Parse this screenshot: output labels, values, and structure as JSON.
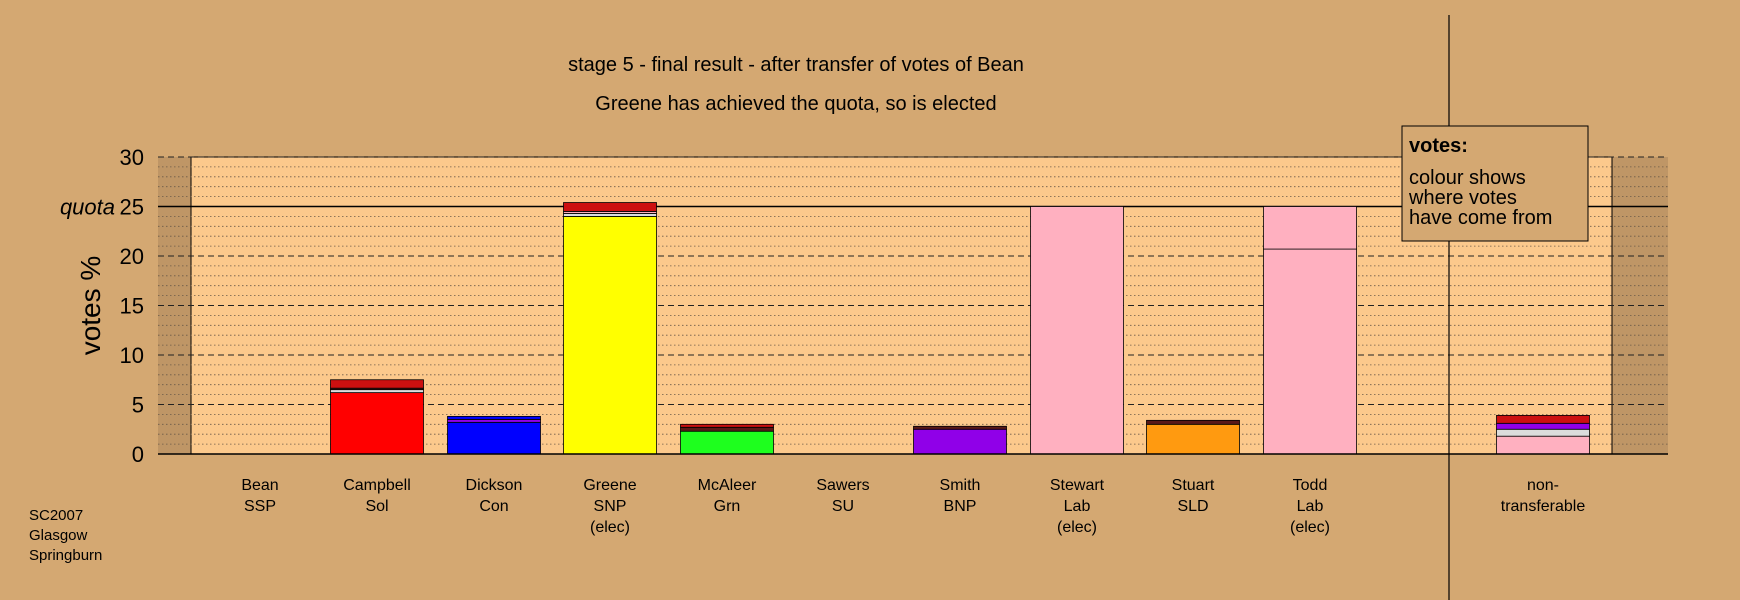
{
  "chart_data": {
    "type": "bar",
    "stacked": true,
    "title": "stage 5 - final result - after transfer of votes of Bean",
    "subtitle": "Greene has achieved the quota, so is elected",
    "ylabel": "votes %",
    "ylim": [
      0,
      30
    ],
    "yticks": [
      0,
      5,
      10,
      15,
      20,
      25,
      30
    ],
    "quota": 25,
    "quota_label": "quota",
    "grid": true,
    "colors": {
      "background": "#d4a872",
      "plot_area": "#fcc98c",
      "side_area": "#bf9666",
      "Sol": "#ff0000",
      "SSP": "#cc1010",
      "Con": "#0000ff",
      "SNP": "#ffff00",
      "Grn": "#1eff1e",
      "BNP": "#9000e8",
      "Lab": "#ffb0c0",
      "SLD": "#ff9a10",
      "Misc": "#dcdcdc",
      "Dark": "#5a1818"
    },
    "candidates": [
      {
        "name": "Bean",
        "party": "SSP",
        "note": "",
        "segments": []
      },
      {
        "name": "Campbell",
        "party": "Sol",
        "note": "",
        "segments": [
          {
            "from": "Sol",
            "value": 6.2
          },
          {
            "from": "Misc",
            "value": 0.3
          },
          {
            "from": "Dark",
            "value": 0.15
          },
          {
            "from": "SSP",
            "value": 0.85
          }
        ]
      },
      {
        "name": "Dickson",
        "party": "Con",
        "note": "",
        "segments": [
          {
            "from": "Con",
            "value": 3.2
          },
          {
            "from": "BNP",
            "value": 0.3
          },
          {
            "from": "Con",
            "value": 0.3
          }
        ]
      },
      {
        "name": "Greene",
        "party": "SNP",
        "note": "(elec)",
        "segments": [
          {
            "from": "SNP",
            "value": 24.0
          },
          {
            "from": "Misc",
            "value": 0.3
          },
          {
            "from": "Lab",
            "value": 0.2
          },
          {
            "from": "SSP",
            "value": 0.9
          }
        ]
      },
      {
        "name": "McAleer",
        "party": "Grn",
        "note": "",
        "segments": [
          {
            "from": "Grn",
            "value": 2.3
          },
          {
            "from": "Dark",
            "value": 0.4
          },
          {
            "from": "SSP",
            "value": 0.3
          }
        ]
      },
      {
        "name": "Sawers",
        "party": "SU",
        "note": "",
        "segments": []
      },
      {
        "name": "Smith",
        "party": "BNP",
        "note": "",
        "segments": [
          {
            "from": "BNP",
            "value": 2.5
          },
          {
            "from": "Dark",
            "value": 0.3
          }
        ]
      },
      {
        "name": "Stewart",
        "party": "Lab",
        "note": "(elec)",
        "segments": [
          {
            "from": "Lab",
            "value": 25.0
          }
        ]
      },
      {
        "name": "Stuart",
        "party": "SLD",
        "note": "",
        "segments": [
          {
            "from": "SLD",
            "value": 3.0
          },
          {
            "from": "Dark",
            "value": 0.4
          }
        ]
      },
      {
        "name": "Todd",
        "party": "Lab",
        "note": "(elec)",
        "segments": [
          {
            "from": "Lab",
            "value": 20.7
          },
          {
            "from": "Lab",
            "value": 4.3
          }
        ]
      }
    ],
    "nontransferable": {
      "label_line1": "non-",
      "label_line2": "transferable",
      "segments": [
        {
          "from": "Lab",
          "value": 1.8
        },
        {
          "from": "Misc",
          "value": 0.7
        },
        {
          "from": "BNP",
          "value": 0.6
        },
        {
          "from": "SSP",
          "value": 0.8
        }
      ]
    },
    "legend": {
      "title": "votes:",
      "lines": [
        "colour shows",
        "where votes",
        "have come from"
      ],
      "placement": "top-right"
    }
  },
  "footer": {
    "line1": "SC2007",
    "line2": "Glasgow",
    "line3": "Springburn"
  }
}
